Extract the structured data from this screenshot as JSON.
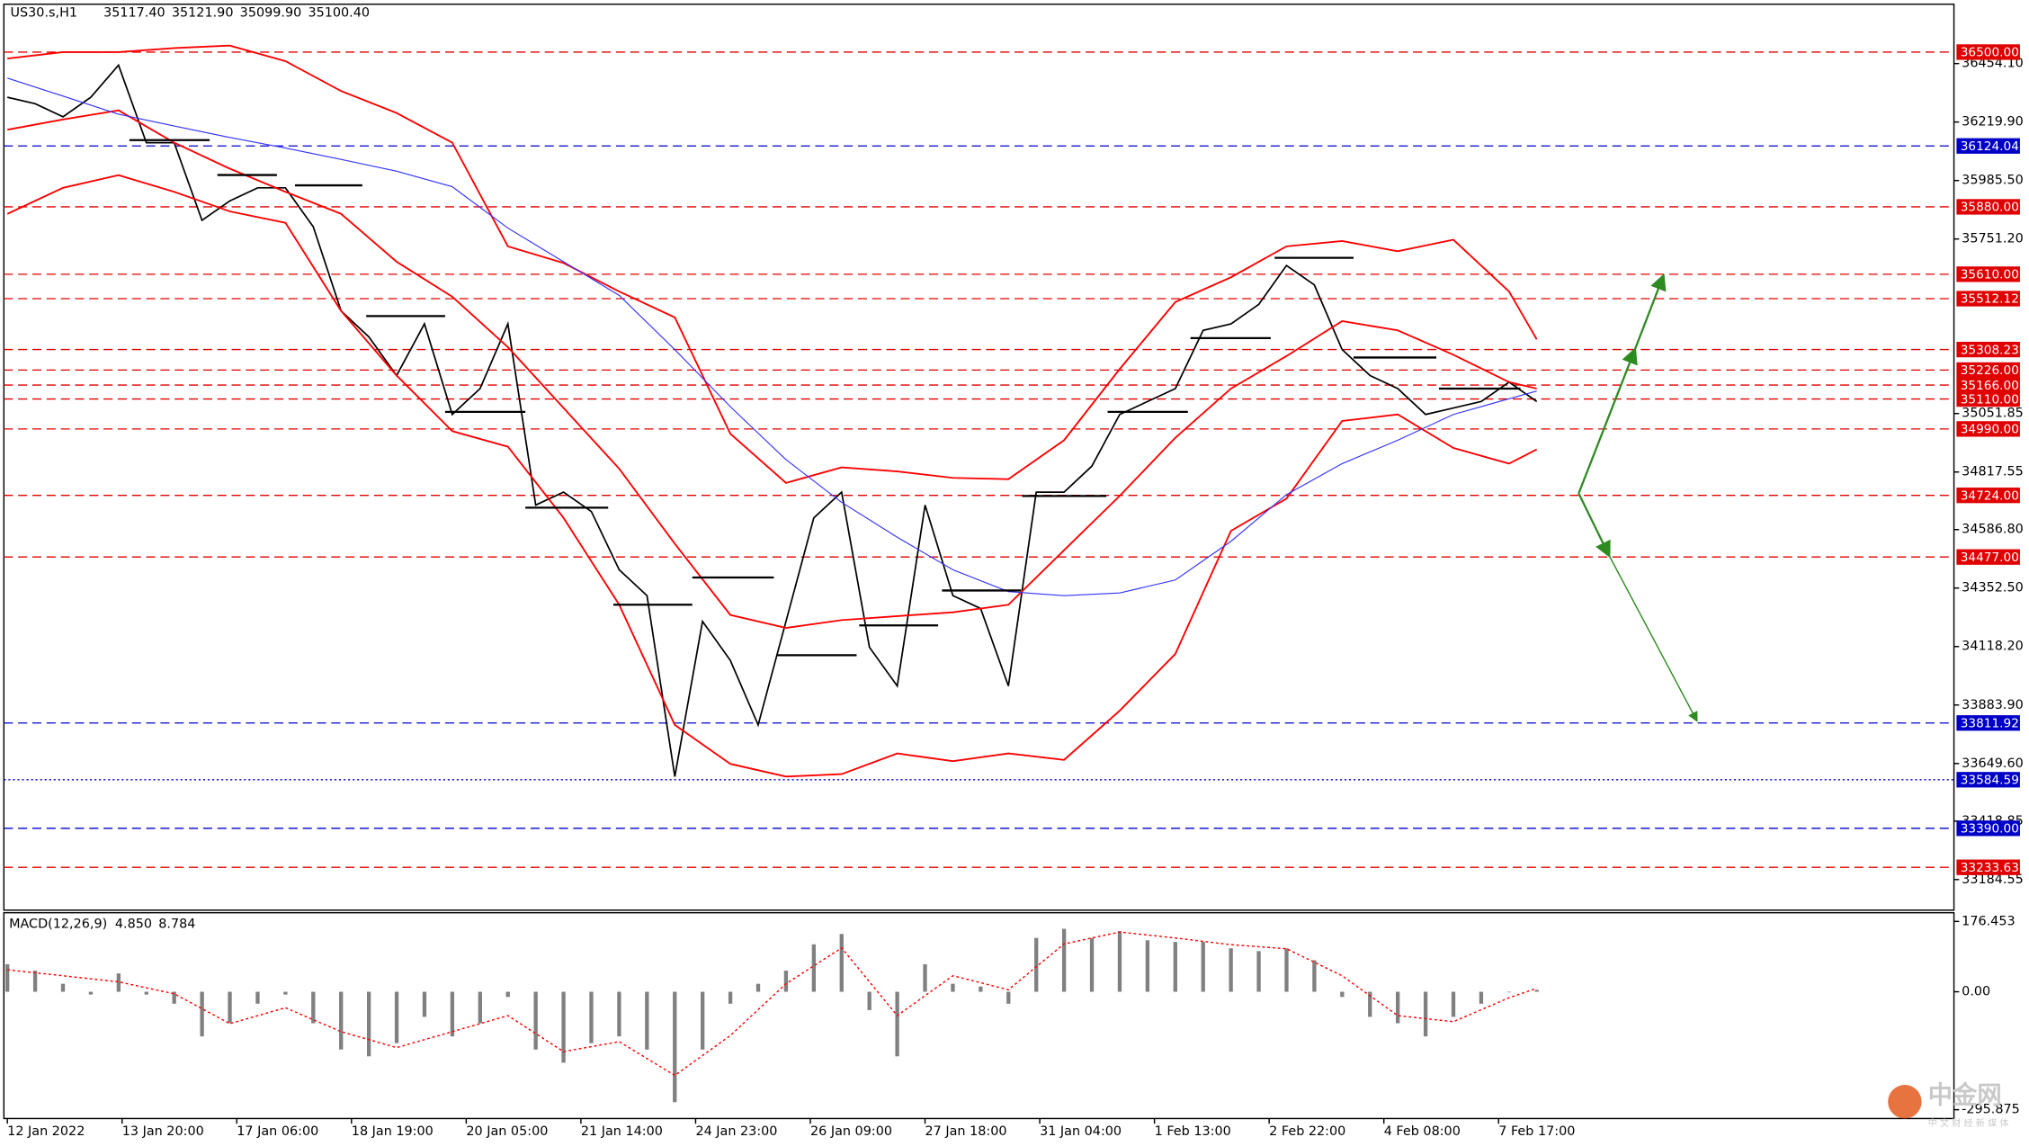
{
  "chart_data": [
    {
      "type": "line",
      "title": "US30.s,H1",
      "ohlc": [
        {
          "value": 35117.4,
          "label": "35117.40"
        },
        {
          "value": 35121.9,
          "label": "35121.90"
        },
        {
          "value": 35099.9,
          "label": "35099.90"
        },
        {
          "value": 35100.4,
          "label": "35100.40"
        }
      ],
      "xlim": [
        -1,
        560
      ],
      "ylim": [
        33062,
        36692
      ],
      "yticks": [
        {
          "value": 36454.1,
          "label": "36454.10"
        },
        {
          "value": 36219.9,
          "label": "36219.90"
        },
        {
          "value": 35985.5,
          "label": "35985.50"
        },
        {
          "value": 35751.2,
          "label": "35751.20"
        },
        35051.85,
        34817.55,
        {
          "value": 34586.8,
          "label": "34586.80"
        },
        {
          "value": 34352.5,
          "label": "34352.50"
        },
        {
          "value": 34118.2,
          "label": "34118.20"
        },
        {
          "value": 33883.9,
          "label": "33883.90"
        },
        {
          "value": 33649.6,
          "label": "33649.60"
        },
        33418.85,
        33184.55
      ],
      "levels": [
        {
          "value": 36500,
          "label": "36500.00",
          "color": "#e00000",
          "style": "dashed"
        },
        {
          "value": 36124.04,
          "label": "36124.04",
          "color": "#0000c8",
          "style": "dashed"
        },
        {
          "value": 35880,
          "label": "35880.00",
          "color": "#e00000",
          "style": "dashed"
        },
        {
          "value": 35610,
          "label": "35610.00",
          "color": "#e00000",
          "style": "dashed"
        },
        {
          "value": 35512.12,
          "label": "35512.12",
          "color": "#e00000",
          "style": "dashed"
        },
        {
          "value": 35308.23,
          "label": "35308.23",
          "color": "#e00000",
          "style": "dashed"
        },
        {
          "value": 35226,
          "label": "35226.00",
          "color": "#e00000",
          "style": "dashed"
        },
        {
          "value": 35166,
          "label": "35166.00",
          "color": "#e00000",
          "style": "dashed"
        },
        {
          "value": 35110,
          "label": "35110.00",
          "color": "#e00000",
          "style": "dashed"
        },
        {
          "value": 34990,
          "label": "34990.00",
          "color": "#e00000",
          "style": "dashed"
        },
        {
          "value": 34724,
          "label": "34724.00",
          "color": "#e00000",
          "style": "dashed"
        },
        {
          "value": 34477,
          "label": "34477.00",
          "color": "#e00000",
          "style": "dashed"
        },
        {
          "value": 33811.92,
          "label": "33811.92",
          "color": "#0000c8",
          "style": "dashed"
        },
        {
          "value": 33584.59,
          "label": "33584.59",
          "color": "#0000c8",
          "style": "dotted"
        },
        {
          "value": 33390,
          "label": "33390.00",
          "color": "#0000c8",
          "style": "dashed"
        },
        {
          "value": 33233.63,
          "label": "33233.63",
          "color": "#e00000",
          "style": "dashed"
        }
      ],
      "series": [
        {
          "color": "#000000",
          "width": 1.2,
          "x": [
            0,
            8,
            16,
            24,
            32,
            40,
            48,
            56,
            64,
            72,
            80,
            88,
            96,
            104,
            112,
            120,
            128,
            136,
            144,
            152,
            160,
            168,
            176,
            184,
            192,
            200,
            208,
            216,
            224,
            232,
            240,
            248,
            256,
            264,
            272,
            280,
            288,
            296,
            304,
            312,
            320,
            328,
            336,
            344,
            352,
            360,
            368,
            376,
            384,
            392,
            400,
            408,
            416,
            424,
            432,
            440
          ],
          "values": [
            36319,
            36293,
            36241,
            36319,
            36448,
            36137,
            36137,
            35826,
            35904,
            35956,
            35956,
            35800,
            35463,
            35359,
            35204,
            35411,
            35048,
            35152,
            35411,
            34685,
            34737,
            34659,
            34426,
            34322,
            33597,
            34219,
            34063,
            33804,
            34219,
            34634,
            34737,
            34115,
            33960,
            34685,
            34322,
            34271,
            33960,
            34737,
            34737,
            34841,
            35048,
            35100,
            35152,
            35385,
            35411,
            35489,
            35645,
            35567,
            35308,
            35204,
            35152,
            35048,
            35074,
            35100,
            35178,
            35100
          ]
        },
        {
          "color": "#ff0000",
          "width": 1.3,
          "x": [
            0,
            16,
            32,
            48,
            64,
            80,
            96,
            112,
            128,
            144,
            160,
            176,
            192,
            208,
            224,
            240,
            256,
            272,
            288,
            304,
            320,
            336,
            352,
            368,
            384,
            400,
            416,
            432,
            440
          ],
          "values": [
            36474,
            36500,
            36500,
            36516,
            36526,
            36464,
            36344,
            36256,
            36137,
            35722,
            35655,
            35541,
            35437,
            34971,
            34774,
            34836,
            34820,
            34794,
            34789,
            34945,
            35230,
            35499,
            35598,
            35722,
            35743,
            35702,
            35748,
            35541,
            35349
          ]
        },
        {
          "color": "#ff0000",
          "width": 1.3,
          "x": [
            0,
            16,
            32,
            48,
            64,
            80,
            96,
            112,
            128,
            144,
            160,
            176,
            192,
            208,
            224,
            240,
            256,
            272,
            288,
            304,
            320,
            336,
            352,
            368,
            384,
            400,
            416,
            432,
            440
          ],
          "values": [
            36189,
            36230,
            36267,
            36137,
            36033,
            35940,
            35852,
            35660,
            35520,
            35318,
            35074,
            34831,
            34530,
            34245,
            34193,
            34224,
            34240,
            34255,
            34286,
            34504,
            34722,
            34955,
            35152,
            35282,
            35422,
            35385,
            35287,
            35178,
            35152
          ]
        },
        {
          "color": "#ff0000",
          "width": 1.3,
          "x": [
            0,
            16,
            32,
            48,
            64,
            80,
            96,
            112,
            128,
            144,
            160,
            176,
            192,
            208,
            224,
            240,
            256,
            272,
            288,
            304,
            320,
            336,
            352,
            368,
            384,
            400,
            416,
            432,
            440
          ],
          "values": [
            35852,
            35956,
            36007,
            35940,
            35862,
            35816,
            35463,
            35204,
            34981,
            34919,
            34634,
            34286,
            33804,
            33648,
            33597,
            33607,
            33690,
            33659,
            33690,
            33664,
            33861,
            34089,
            34582,
            34711,
            35022,
            35048,
            34914,
            34851,
            34908
          ]
        },
        {
          "color": "#3333ff",
          "width": 0.8,
          "x": [
            0,
            16,
            32,
            48,
            64,
            80,
            96,
            112,
            128,
            144,
            160,
            176,
            192,
            208,
            224,
            240,
            256,
            272,
            288,
            304,
            320,
            336,
            352,
            368,
            384,
            400,
            416,
            432,
            440
          ],
          "values": [
            36396,
            36324,
            36251,
            36204,
            36158,
            36116,
            36070,
            36023,
            35961,
            35795,
            35660,
            35525,
            35308,
            35079,
            34867,
            34696,
            34556,
            34426,
            34338,
            34322,
            34333,
            34385,
            34540,
            34727,
            34851,
            34945,
            35048,
            35111,
            35142
          ]
        }
      ]
    },
    {
      "type": "macd",
      "title": "MACD(12,26,9)",
      "current": [
        {
          "value": 4.85,
          "label": "4.850"
        },
        8.784
      ],
      "xlim": [
        -1,
        560
      ],
      "ylim": [
        -318,
        195
      ],
      "yticks": [
        176.453,
        {
          "value": 0,
          "label": "0.00"
        },
        -295.875
      ],
      "xticks": [
        {
          "value": 0,
          "label": "12 Jan 2022"
        },
        {
          "value": 33,
          "label": "13 Jan 20:00"
        },
        {
          "value": 66,
          "label": "17 Jan 06:00"
        },
        {
          "value": 99,
          "label": "18 Jan 19:00"
        },
        {
          "value": 132,
          "label": "20 Jan 05:00"
        },
        {
          "value": 165,
          "label": "21 Jan 14:00"
        },
        {
          "value": 198,
          "label": "24 Jan 23:00"
        },
        {
          "value": 231,
          "label": "26 Jan 09:00"
        },
        {
          "value": 264,
          "label": "27 Jan 18:00"
        },
        {
          "value": 297,
          "label": "31 Jan 04:00"
        },
        {
          "value": 330,
          "label": "1 Feb 13:00"
        },
        {
          "value": 363,
          "label": "2 Feb 22:00"
        },
        {
          "value": 396,
          "label": "4 Feb 08:00"
        },
        {
          "value": 429,
          "label": "7 Feb 17:00"
        }
      ],
      "series": [
        {
          "kind": "histogram",
          "color": "#808080",
          "x": [
            0,
            8,
            16,
            24,
            32,
            40,
            48,
            56,
            64,
            72,
            80,
            88,
            96,
            104,
            112,
            120,
            128,
            136,
            144,
            152,
            160,
            168,
            176,
            184,
            192,
            200,
            208,
            216,
            224,
            232,
            240,
            248,
            256,
            264,
            272,
            280,
            288,
            296,
            304,
            312,
            320,
            328,
            336,
            344,
            352,
            360,
            368,
            376,
            384,
            392,
            400,
            408,
            416,
            424,
            432,
            440
          ],
          "values": [
            69,
            53,
            20,
            -7,
            46,
            -7,
            -30,
            -112,
            -79,
            -30,
            -7,
            -79,
            -145,
            -162,
            -129,
            -63,
            -112,
            -79,
            -13,
            -145,
            -178,
            -129,
            -112,
            -145,
            -277,
            -145,
            -30,
            20,
            53,
            119,
            145,
            -46,
            -162,
            69,
            20,
            13,
            -30,
            135,
            158,
            135,
            152,
            129,
            125,
            125,
            109,
            102,
            109,
            79,
            -13,
            -63,
            -79,
            -112,
            -63,
            -30,
            0,
            4.85
          ]
        },
        {
          "kind": "line",
          "color": "#ff0000",
          "line_style": "dotted",
          "x": [
            0,
            16,
            32,
            48,
            64,
            80,
            96,
            112,
            128,
            144,
            160,
            176,
            192,
            208,
            224,
            240,
            256,
            272,
            288,
            304,
            320,
            336,
            352,
            368,
            384,
            400,
            416,
            432,
            440
          ],
          "values": [
            55,
            40,
            25,
            -5,
            -80,
            -40,
            -100,
            -140,
            -100,
            -60,
            -150,
            -125,
            -210,
            -110,
            20,
            110,
            -60,
            40,
            5,
            120,
            150,
            135,
            118,
            108,
            40,
            -60,
            -75,
            -15,
            8.784
          ]
        }
      ]
    }
  ],
  "watermark": {
    "title": "中金网",
    "subtitle": "中 文 财 经 新 媒 体"
  }
}
